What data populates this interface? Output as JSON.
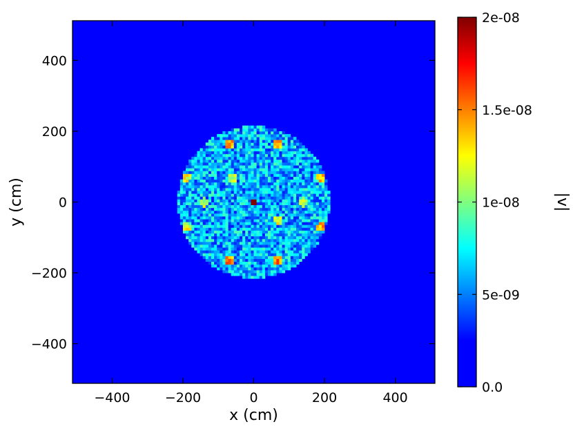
{
  "chart_data": {
    "type": "heatmap",
    "title": "",
    "xlabel": "x (cm)",
    "ylabel": "y (cm)",
    "xlim": [
      -512,
      512
    ],
    "ylim": [
      -512,
      512
    ],
    "xticks": [
      -400,
      -200,
      0,
      200,
      400
    ],
    "yticks": [
      -400,
      -200,
      0,
      200,
      400
    ],
    "xtick_labels": [
      "−400",
      "−200",
      "0",
      "200",
      "400"
    ],
    "ytick_labels": [
      "−400",
      "−200",
      "0",
      "200",
      "400"
    ],
    "grid": false,
    "colormap": "jet",
    "background_value": 0.0,
    "colorbar": {
      "label": "|v|",
      "range": [
        0.0,
        2e-08
      ],
      "ticks": [
        0.0,
        5e-09,
        1e-08,
        1.5e-08,
        2e-08
      ],
      "tick_labels": [
        "0.0",
        "5e-09",
        "1e-08",
        "1.5e-08",
        "2e-08"
      ]
    },
    "region": {
      "shape": "disk",
      "center": [
        0,
        0
      ],
      "radius": 215,
      "typical_value": 6e-09,
      "value_spread": 3e-09,
      "peak": {
        "x": 0,
        "y": 0,
        "value": 2e-08
      },
      "hot_spots": [
        {
          "x": -70,
          "y": 165,
          "value": 1.6e-08
        },
        {
          "x": 70,
          "y": 165,
          "value": 1.6e-08
        },
        {
          "x": -70,
          "y": -165,
          "value": 1.7e-08
        },
        {
          "x": 70,
          "y": -165,
          "value": 1.7e-08
        },
        {
          "x": 190,
          "y": 70,
          "value": 1.5e-08
        },
        {
          "x": 190,
          "y": -70,
          "value": 1.6e-08
        },
        {
          "x": -190,
          "y": 70,
          "value": 1.4e-08
        },
        {
          "x": -190,
          "y": -70,
          "value": 1.4e-08
        },
        {
          "x": -140,
          "y": 0,
          "value": 1.3e-08
        },
        {
          "x": 140,
          "y": 0,
          "value": 1.3e-08
        },
        {
          "x": 70,
          "y": -50,
          "value": 1.4e-08
        },
        {
          "x": -60,
          "y": 70,
          "value": 1.3e-08
        }
      ]
    }
  }
}
